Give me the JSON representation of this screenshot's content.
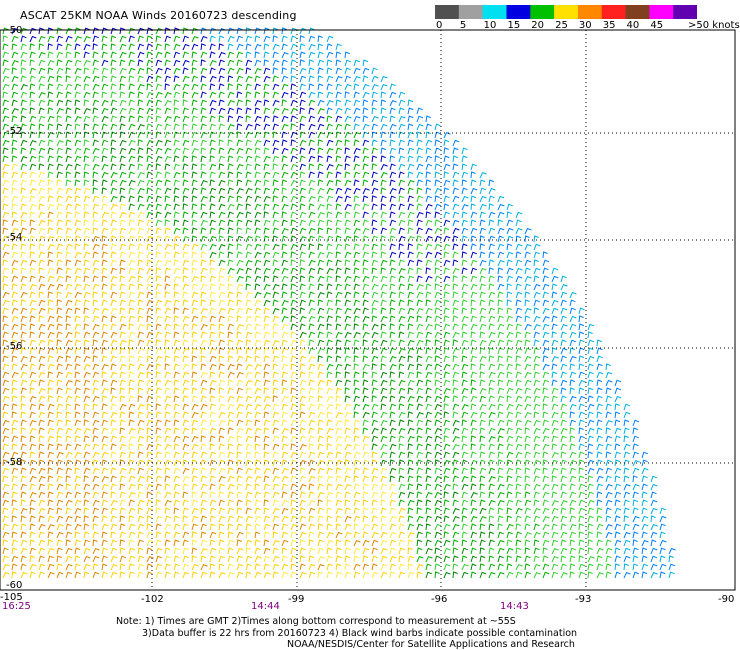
{
  "header": {
    "title": "ASCAT 25KM NOAA Winds 20160723 descending"
  },
  "legend": {
    "units_label": ">50 knots",
    "bins": [
      {
        "label": "0",
        "color": "#505050"
      },
      {
        "label": "5",
        "color": "#a0a0a0"
      },
      {
        "label": "10",
        "color": "#00e0f0"
      },
      {
        "label": "15",
        "color": "#0000e0"
      },
      {
        "label": "20",
        "color": "#00c000"
      },
      {
        "label": "25",
        "color": "#ffe000"
      },
      {
        "label": "30",
        "color": "#ff8800"
      },
      {
        "label": "35",
        "color": "#ff2020"
      },
      {
        "label": "40",
        "color": "#804020"
      },
      {
        "label": "45",
        "color": "#ff00ff"
      },
      {
        "label": "",
        "color": "#6000b0"
      }
    ]
  },
  "map": {
    "lat_labels": [
      "-50",
      "-52",
      "-54",
      "-56",
      "-58",
      "-60"
    ],
    "lon_labels": [
      "-105",
      "-102",
      "-99",
      "-96",
      "-93",
      "-90"
    ],
    "time_labels": [
      "16:25",
      "14:44",
      "14:43"
    ],
    "swath_colors": {
      "yellow": "#ffd000",
      "yellow_light": "#ffe840",
      "orange": "#e08800",
      "green": "#00b000",
      "green_dark": "#008800",
      "green_light": "#30d030",
      "blue": "#0000c0",
      "light_blue": "#0080ff",
      "cyan": "#00b0e0"
    }
  },
  "footer": {
    "note_line1": "Note: 1) Times are GMT 2)Times along bottom correspond to measurement at ~55S",
    "note_line2": "3)Data buffer is 22 hrs from 20160723 4) Black wind barbs indicate possible contamination",
    "credit": "NOAA/NESDIS/Center for Satellite Applications and Research"
  }
}
